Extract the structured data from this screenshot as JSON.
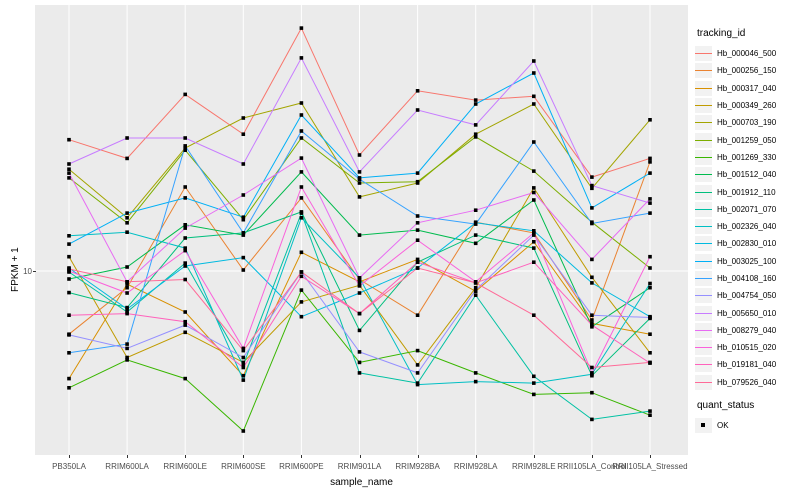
{
  "chart_data": {
    "type": "line",
    "title": "",
    "xlabel": "sample_name",
    "ylabel": "FPKM + 1",
    "y_scale": "log10",
    "y_tick_labels": [
      "10"
    ],
    "y_tick_values": [
      10
    ],
    "ylim_approx": [
      1.8,
      110
    ],
    "grid": "vertical-category-lines-and-y10-line",
    "panel_background": "#EBEBEB",
    "gridline_color": "#FFFFFF",
    "point_shape": "filled-square",
    "point_color": "#000000",
    "legend_position": "right",
    "categories": [
      "PB350LA",
      "RRIM600LA",
      "RRIM600LE",
      "RRIM600SE",
      "RRIM600PE",
      "RRIM901LA",
      "RRIM928BA",
      "RRIM928LA",
      "RRIM928LE",
      "RRII105LA_Control",
      "RRII105LA_Stressed"
    ],
    "color_legend_title": "tracking_id",
    "shape_legend_title": "quant_status",
    "shape_legend_items": [
      {
        "label": "OK"
      }
    ],
    "series": [
      {
        "name": "Hb_000046_500",
        "color": "#F8766D",
        "values": [
          36,
          30,
          56,
          38,
          107,
          31,
          58,
          53,
          55,
          25,
          30
        ]
      },
      {
        "name": "Hb_000256_150",
        "color": "#EA8331",
        "values": [
          5.4,
          8.5,
          22.7,
          10.1,
          20.4,
          9.2,
          6.5,
          16.1,
          14.5,
          6.2,
          29
        ]
      },
      {
        "name": "Hb_000317_040",
        "color": "#D89000",
        "values": [
          3.5,
          8.8,
          6.7,
          3.6,
          12.0,
          9.0,
          11.2,
          8.2,
          13.3,
          6.0,
          5.4
        ]
      },
      {
        "name": "Hb_000349_260",
        "color": "#C09B00",
        "values": [
          11.5,
          4.3,
          5.5,
          4.1,
          7.4,
          8.7,
          4.0,
          8.5,
          22.5,
          9.4,
          4.5
        ]
      },
      {
        "name": "Hb_000703_190",
        "color": "#A3A500",
        "values": [
          27,
          16.8,
          33.2,
          44.5,
          51.5,
          20.6,
          23.6,
          38,
          51,
          22.4,
          43.7
        ]
      },
      {
        "name": "Hb_001259_050",
        "color": "#7CAE00",
        "values": [
          24.8,
          16.0,
          32.5,
          16.5,
          36.6,
          23.6,
          23.9,
          37,
          26.5,
          16.1,
          10.3
        ]
      },
      {
        "name": "Hb_001269_330",
        "color": "#39B600",
        "values": [
          3.2,
          4.2,
          3.5,
          2.1,
          8.3,
          4.1,
          4.6,
          3.7,
          3.0,
          3.05,
          2.45
        ]
      },
      {
        "name": "Hb_001512_040",
        "color": "#00BB4E",
        "values": [
          9.25,
          10.4,
          15.7,
          14.2,
          26.3,
          14.2,
          14.9,
          13.1,
          20.0,
          5.8,
          8.5
        ]
      },
      {
        "name": "Hb_001912_110",
        "color": "#00BF7D",
        "values": [
          8.1,
          7.0,
          13.8,
          14.5,
          17.8,
          5.6,
          10.9,
          14.2,
          12.5,
          3.6,
          6.3
        ]
      },
      {
        "name": "Hb_002071_070",
        "color": "#00C1A3",
        "values": [
          9.9,
          6.7,
          10.8,
          4.0,
          17.6,
          3.7,
          3.35,
          7.9,
          3.58,
          2.35,
          2.55
        ]
      },
      {
        "name": "Hb_002326_040",
        "color": "#00BFC4",
        "values": [
          14.1,
          14.6,
          12.5,
          3.45,
          16.8,
          9.35,
          3.3,
          3.4,
          3.35,
          3.65,
          8.85
        ]
      },
      {
        "name": "Hb_002830_010",
        "color": "#00BAE0",
        "values": [
          10.3,
          6.9,
          10.5,
          11.4,
          6.4,
          8.07,
          10.3,
          16.0,
          14.8,
          8.9,
          6.4
        ]
      },
      {
        "name": "Hb_003025_100",
        "color": "#00B0F6",
        "values": [
          13.0,
          17.6,
          20.4,
          16.9,
          45.8,
          24.8,
          26.0,
          51,
          69,
          18.5,
          26
        ]
      },
      {
        "name": "Hb_004108_160",
        "color": "#35A2FF",
        "values": [
          4.5,
          4.9,
          33.9,
          14.5,
          39.2,
          24.5,
          17.1,
          15.8,
          35.2,
          15.9,
          17.6
        ]
      },
      {
        "name": "Hb_004754_050",
        "color": "#9590FF",
        "values": [
          5.36,
          4.7,
          5.9,
          4.3,
          9.9,
          4.54,
          3.7,
          8.3,
          14.2,
          6.5,
          6.35
        ]
      },
      {
        "name": "Hb_005650_010",
        "color": "#C77CFF",
        "values": [
          28.4,
          36.6,
          36.6,
          28.4,
          80,
          26.3,
          48.1,
          41.6,
          77.6,
          23,
          19.4
        ]
      },
      {
        "name": "Hb_008279_040",
        "color": "#E76BF3",
        "values": [
          26,
          9.0,
          15.2,
          21.0,
          30.1,
          9.35,
          16.0,
          18.1,
          21.5,
          11.2,
          20.2
        ]
      },
      {
        "name": "Hb_010515_020",
        "color": "#FA62DB",
        "values": [
          10.0,
          8.07,
          12.2,
          4.7,
          22.7,
          8.65,
          13.5,
          9.0,
          14.5,
          3.7,
          11.5
        ]
      },
      {
        "name": "Hb_019181_040",
        "color": "#FF62BC",
        "values": [
          6.5,
          6.6,
          6.1,
          3.9,
          9.5,
          6.6,
          10.9,
          8.9,
          10.9,
          5.9,
          4.07
        ]
      },
      {
        "name": "Hb_079526_040",
        "color": "#FF6A98",
        "values": [
          10.2,
          9.0,
          9.2,
          4.6,
          9.9,
          6.6,
          10.3,
          8.9,
          6.5,
          3.9,
          4.1
        ]
      }
    ]
  }
}
